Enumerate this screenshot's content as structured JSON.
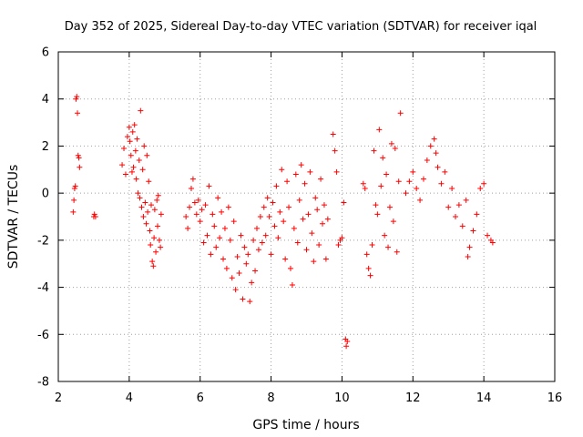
{
  "chart_data": {
    "type": "scatter",
    "title": "Day 352 of 2025, Sidereal Day-to-day VTEC variation (SDTVAR) for receiver iqal",
    "xlabel": "GPS time / hours",
    "ylabel": "SDTVAR / TECUs",
    "xlim": [
      2,
      16
    ],
    "ylim": [
      -8,
      6
    ],
    "xticks": [
      2,
      4,
      6,
      8,
      10,
      12,
      14,
      16
    ],
    "xtick_labels": [
      "2",
      "4",
      "6",
      "8",
      "10",
      "12",
      "14",
      "16"
    ],
    "yticks": [
      -8,
      -6,
      -4,
      -2,
      0,
      2,
      4,
      6
    ],
    "ytick_labels": [
      "-8",
      "-6",
      "-4",
      "-2",
      "0",
      "2",
      "4",
      "6"
    ],
    "grid": true,
    "marker": "plus",
    "color": "#ff0000",
    "series": [
      {
        "name": "SDTVAR",
        "x": [
          2.42,
          2.44,
          2.46,
          2.48,
          2.5,
          2.52,
          2.54,
          2.56,
          2.58,
          2.6,
          3.0,
          3.02,
          3.05,
          3.8,
          3.85,
          3.9,
          3.95,
          4.0,
          4.02,
          4.05,
          4.08,
          4.1,
          4.12,
          4.15,
          4.18,
          4.2,
          4.22,
          4.25,
          4.28,
          4.3,
          4.32,
          4.35,
          4.38,
          4.4,
          4.42,
          4.45,
          4.48,
          4.5,
          4.52,
          4.55,
          4.58,
          4.6,
          4.62,
          4.65,
          4.68,
          4.7,
          4.72,
          4.75,
          4.78,
          4.8,
          4.82,
          4.85,
          4.88,
          4.9,
          5.6,
          5.65,
          5.7,
          5.75,
          5.8,
          5.85,
          5.9,
          5.95,
          6.0,
          6.05,
          6.1,
          6.15,
          6.2,
          6.25,
          6.3,
          6.35,
          6.4,
          6.45,
          6.5,
          6.55,
          6.6,
          6.65,
          6.7,
          6.75,
          6.8,
          6.85,
          6.9,
          6.95,
          7.0,
          7.05,
          7.1,
          7.15,
          7.2,
          7.25,
          7.3,
          7.35,
          7.4,
          7.45,
          7.5,
          7.55,
          7.6,
          7.65,
          7.7,
          7.75,
          7.8,
          7.85,
          7.9,
          7.95,
          8.0,
          8.05,
          8.1,
          8.15,
          8.2,
          8.25,
          8.3,
          8.35,
          8.4,
          8.45,
          8.5,
          8.55,
          8.6,
          8.65,
          8.7,
          8.75,
          8.8,
          8.85,
          8.9,
          8.95,
          9.0,
          9.05,
          9.1,
          9.15,
          9.2,
          9.25,
          9.3,
          9.35,
          9.4,
          9.45,
          9.5,
          9.55,
          9.6,
          9.75,
          9.8,
          9.85,
          9.9,
          9.95,
          10.0,
          10.05,
          10.1,
          10.12,
          10.15,
          10.6,
          10.65,
          10.7,
          10.75,
          10.8,
          10.85,
          10.9,
          10.95,
          11.0,
          11.05,
          11.1,
          11.15,
          11.2,
          11.25,
          11.3,
          11.35,
          11.4,
          11.45,
          11.5,
          11.55,
          11.6,
          11.65,
          11.8,
          11.9,
          12.0,
          12.1,
          12.2,
          12.3,
          12.4,
          12.5,
          12.6,
          12.65,
          12.7,
          12.8,
          12.9,
          13.0,
          13.1,
          13.2,
          13.3,
          13.4,
          13.5,
          13.55,
          13.6,
          13.7,
          13.8,
          13.9,
          14.0,
          14.1,
          14.2,
          14.25
        ],
        "y": [
          -0.8,
          -0.3,
          0.2,
          0.3,
          4.0,
          4.1,
          3.4,
          1.6,
          1.5,
          1.1,
          -1.0,
          -0.9,
          -1.0,
          1.2,
          1.9,
          0.8,
          2.4,
          2.8,
          2.2,
          1.6,
          0.9,
          2.6,
          1.1,
          2.9,
          1.8,
          0.6,
          2.3,
          0.0,
          1.4,
          -0.2,
          3.5,
          -0.6,
          1.0,
          -1.0,
          2.0,
          -0.4,
          -1.3,
          1.6,
          -0.8,
          0.5,
          -1.6,
          -2.2,
          -0.5,
          -2.9,
          -3.1,
          -1.9,
          -0.7,
          -2.5,
          -0.3,
          -1.4,
          -0.1,
          -2.0,
          -2.3,
          -0.9,
          -1.0,
          -1.5,
          -0.6,
          0.2,
          0.6,
          -0.4,
          -0.9,
          -0.3,
          -1.2,
          -0.7,
          -2.1,
          -0.5,
          -1.8,
          0.3,
          -2.6,
          -0.9,
          -1.4,
          -2.3,
          -0.2,
          -1.9,
          -0.8,
          -2.8,
          -1.5,
          -3.2,
          -0.6,
          -2.0,
          -3.6,
          -1.2,
          -4.1,
          -2.7,
          -3.4,
          -1.8,
          -4.5,
          -2.3,
          -3.0,
          -2.6,
          -4.6,
          -3.8,
          -2.0,
          -3.3,
          -1.5,
          -2.4,
          -1.0,
          -2.1,
          -0.6,
          -1.8,
          -0.2,
          -1.0,
          -2.6,
          -0.4,
          -1.4,
          0.3,
          -1.9,
          -0.8,
          1.0,
          -1.2,
          -2.8,
          0.5,
          -0.6,
          -3.2,
          -3.9,
          -1.5,
          0.8,
          -2.1,
          -0.3,
          1.2,
          -1.1,
          0.4,
          -2.4,
          -0.9,
          0.9,
          -1.7,
          -2.9,
          -0.2,
          -0.7,
          -2.2,
          0.6,
          -1.3,
          -0.5,
          -2.8,
          -1.1,
          2.5,
          1.8,
          0.9,
          -2.2,
          -2.0,
          -1.9,
          -0.4,
          -6.2,
          -6.5,
          -6.3,
          0.4,
          0.2,
          -2.6,
          -3.2,
          -3.5,
          -2.2,
          1.8,
          -0.5,
          -0.9,
          2.7,
          0.3,
          1.5,
          -1.8,
          0.8,
          -2.3,
          -0.6,
          2.1,
          -1.2,
          1.9,
          -2.5,
          0.5,
          3.4,
          0.0,
          0.5,
          0.9,
          0.2,
          -0.3,
          0.6,
          1.4,
          2.0,
          2.3,
          1.7,
          1.1,
          0.4,
          0.9,
          -0.6,
          0.2,
          -1.0,
          -0.5,
          -1.4,
          -0.3,
          -2.7,
          -2.3,
          -1.6,
          -0.9,
          0.2,
          0.4,
          -1.8,
          -2.0,
          -2.1
        ]
      }
    ]
  }
}
